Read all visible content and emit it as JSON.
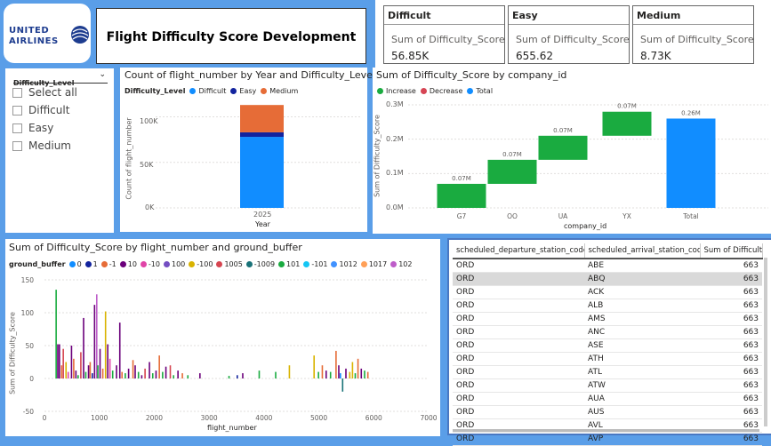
{
  "header": {
    "logo_line1": "UNITED",
    "logo_line2": "AIRLINES",
    "title": "Flight Difficulty Score Development"
  },
  "cards": [
    {
      "title": "Difficult",
      "label": "Sum of Difficulty_Score",
      "value": "56.85K"
    },
    {
      "title": "Easy",
      "label": "Sum of Difficulty_Score",
      "value": "655.62"
    },
    {
      "title": "Medium",
      "label": "Sum of Difficulty_Score",
      "value": "8.73K"
    }
  ],
  "slicer": {
    "title": "Difficulty_Level",
    "items": [
      "Select all",
      "Difficult",
      "Easy",
      "Medium"
    ]
  },
  "chart_year": {
    "title": "Count of flight_number by Year and Difficulty_Level",
    "legend_title": "Difficulty_Level",
    "xlabel": "Year",
    "ylabel": "Count of flight_number",
    "yticks": [
      "0K",
      "50K",
      "100K"
    ]
  },
  "chart_company": {
    "title": "Sum of Difficulty_Score by company_id",
    "legend": [
      "Increase",
      "Decrease",
      "Total"
    ],
    "xlabel": "company_id",
    "ylabel": "Sum of Difficulty_Score",
    "yticks": [
      "0.0M",
      "0.1M",
      "0.2M",
      "0.3M"
    ]
  },
  "chart_flight": {
    "title": "Sum of Difficulty_Score by flight_number and ground_buffer",
    "legend_title": "ground_buffer",
    "xlabel": "flight_number",
    "ylabel": "Sum of Difficulty_Score",
    "yticks": [
      "-50",
      "0",
      "50",
      "100",
      "150"
    ],
    "xticks": [
      "0",
      "1000",
      "2000",
      "3000",
      "4000",
      "5000",
      "6000",
      "7000"
    ]
  },
  "table": {
    "headers": [
      "scheduled_departure_station_code",
      "scheduled_arrival_station_code",
      "Sum of Difficulty_"
    ],
    "rows": [
      [
        "ORD",
        "ABE",
        "663"
      ],
      [
        "ORD",
        "ABQ",
        "663"
      ],
      [
        "ORD",
        "ACK",
        "663"
      ],
      [
        "ORD",
        "ALB",
        "663"
      ],
      [
        "ORD",
        "AMS",
        "663"
      ],
      [
        "ORD",
        "ANC",
        "663"
      ],
      [
        "ORD",
        "ASE",
        "663"
      ],
      [
        "ORD",
        "ATH",
        "663"
      ],
      [
        "ORD",
        "ATL",
        "663"
      ],
      [
        "ORD",
        "ATW",
        "663"
      ],
      [
        "ORD",
        "AUA",
        "663"
      ],
      [
        "ORD",
        "AUS",
        "663"
      ],
      [
        "ORD",
        "AVL",
        "663"
      ],
      [
        "ORD",
        "AVP",
        "663"
      ]
    ]
  },
  "chart_data": [
    {
      "type": "bar",
      "title": "Count of flight_number by Year and Difficulty_Level",
      "xlabel": "Year",
      "ylabel": "Count of flight_number",
      "categories": [
        "2025"
      ],
      "ylim": [
        0,
        120000
      ],
      "stacked": true,
      "series": [
        {
          "name": "Difficult",
          "color": "#118dff",
          "values": [
            78000
          ]
        },
        {
          "name": "Easy",
          "color": "#12239e",
          "values": [
            5000
          ]
        },
        {
          "name": "Medium",
          "color": "#e66c37",
          "values": [
            30000
          ]
        }
      ],
      "legend": "top-left"
    },
    {
      "type": "bar",
      "subtype": "waterfall",
      "title": "Sum of Difficulty_Score by company_id",
      "xlabel": "company_id",
      "ylabel": "Sum of Difficulty_Score",
      "categories": [
        "G7",
        "OO",
        "UA",
        "YX",
        "Total"
      ],
      "values": [
        70000,
        70000,
        70000,
        70000,
        260000
      ],
      "data_labels": [
        "0.07M",
        "0.07M",
        "0.07M",
        "0.07M",
        "0.26M"
      ],
      "ylim": [
        0,
        300000
      ],
      "colors": {
        "Increase": "#1aab40",
        "Decrease": "#d64554",
        "Total": "#118dff"
      },
      "legend": "top-left"
    },
    {
      "type": "bar",
      "title": "Sum of Difficulty_Score by flight_number and ground_buffer",
      "xlabel": "flight_number",
      "ylabel": "Sum of Difficulty_Score",
      "xlim": [
        0,
        7000
      ],
      "ylim": [
        -50,
        150
      ],
      "legend": "top-left",
      "series": [
        {
          "name": "0",
          "color": "#118dff"
        },
        {
          "name": "1",
          "color": "#12239e"
        },
        {
          "name": "-1",
          "color": "#e66c37"
        },
        {
          "name": "10",
          "color": "#6b007b"
        },
        {
          "name": "-10",
          "color": "#e044a7"
        },
        {
          "name": "100",
          "color": "#744ec2"
        },
        {
          "name": "-100",
          "color": "#d9b300"
        },
        {
          "name": "1005",
          "color": "#d64550"
        },
        {
          "name": "-1009",
          "color": "#197278"
        },
        {
          "name": "101",
          "color": "#1aab40"
        },
        {
          "name": "-101",
          "color": "#15c6f4"
        },
        {
          "name": "1012",
          "color": "#4092ff"
        },
        {
          "name": "1017",
          "color": "#ffa058"
        },
        {
          "name": "102",
          "color": "#be5dc9"
        }
      ],
      "bars": [
        [
          200,
          135,
          "#1aab40"
        ],
        [
          230,
          52,
          "#6b007b"
        ],
        [
          260,
          52,
          "#6b007b"
        ],
        [
          300,
          20,
          "#e66c37"
        ],
        [
          330,
          45,
          "#d64550"
        ],
        [
          380,
          25,
          "#d9b300"
        ],
        [
          420,
          10,
          "#e044a7"
        ],
        [
          480,
          50,
          "#6b007b"
        ],
        [
          520,
          30,
          "#e66c37"
        ],
        [
          560,
          12,
          "#6b007b"
        ],
        [
          600,
          5,
          "#1aab40"
        ],
        [
          650,
          40,
          "#d64550"
        ],
        [
          700,
          92,
          "#6b007b"
        ],
        [
          740,
          10,
          "#1aab40"
        ],
        [
          790,
          20,
          "#6b007b"
        ],
        [
          820,
          25,
          "#e66c37"
        ],
        [
          860,
          8,
          "#12239e"
        ],
        [
          900,
          112,
          "#6b007b"
        ],
        [
          940,
          128,
          "#be5dc9"
        ],
        [
          960,
          20,
          "#1aab40"
        ],
        [
          1000,
          45,
          "#6b007b"
        ],
        [
          1050,
          15,
          "#e66c37"
        ],
        [
          1100,
          102,
          "#d9b300"
        ],
        [
          1140,
          52,
          "#6b007b"
        ],
        [
          1180,
          30,
          "#e044a7"
        ],
        [
          1230,
          12,
          "#1aab40"
        ],
        [
          1300,
          20,
          "#6b007b"
        ],
        [
          1360,
          85,
          "#6b007b"
        ],
        [
          1400,
          10,
          "#e66c37"
        ],
        [
          1460,
          8,
          "#1aab40"
        ],
        [
          1520,
          15,
          "#6b007b"
        ],
        [
          1600,
          28,
          "#e66c37"
        ],
        [
          1640,
          20,
          "#6b007b"
        ],
        [
          1700,
          10,
          "#1aab40"
        ],
        [
          1760,
          5,
          "#6b007b"
        ],
        [
          1820,
          15,
          "#d64550"
        ],
        [
          1900,
          25,
          "#6b007b"
        ],
        [
          1960,
          8,
          "#1aab40"
        ],
        [
          2020,
          12,
          "#6b007b"
        ],
        [
          2080,
          35,
          "#e66c37"
        ],
        [
          2140,
          10,
          "#1aab40"
        ],
        [
          2200,
          18,
          "#6b007b"
        ],
        [
          2280,
          20,
          "#d64550"
        ],
        [
          2340,
          5,
          "#1aab40"
        ],
        [
          2420,
          12,
          "#6b007b"
        ],
        [
          2500,
          8,
          "#e66c37"
        ],
        [
          2600,
          5,
          "#1aab40"
        ],
        [
          2820,
          8,
          "#6b007b"
        ],
        [
          3350,
          4,
          "#1aab40"
        ],
        [
          3500,
          5,
          "#12239e"
        ],
        [
          3600,
          8,
          "#6b007b"
        ],
        [
          3900,
          12,
          "#1aab40"
        ],
        [
          4200,
          10,
          "#1aab40"
        ],
        [
          4450,
          20,
          "#d9b300"
        ],
        [
          4900,
          35,
          "#d9b300"
        ],
        [
          4980,
          10,
          "#1aab40"
        ],
        [
          5050,
          20,
          "#e66c37"
        ],
        [
          5120,
          12,
          "#6b007b"
        ],
        [
          5200,
          10,
          "#1aab40"
        ],
        [
          5300,
          42,
          "#e66c37"
        ],
        [
          5350,
          20,
          "#6b007b"
        ],
        [
          5380,
          8,
          "#118dff"
        ],
        [
          5420,
          -20,
          "#197278"
        ],
        [
          5480,
          15,
          "#6b007b"
        ],
        [
          5550,
          10,
          "#d9b300"
        ],
        [
          5600,
          25,
          "#d9b300"
        ],
        [
          5650,
          8,
          "#1aab40"
        ],
        [
          5700,
          30,
          "#e66c37"
        ],
        [
          5760,
          15,
          "#6b007b"
        ],
        [
          5820,
          12,
          "#1aab40"
        ],
        [
          5880,
          10,
          "#e66c37"
        ]
      ]
    }
  ]
}
